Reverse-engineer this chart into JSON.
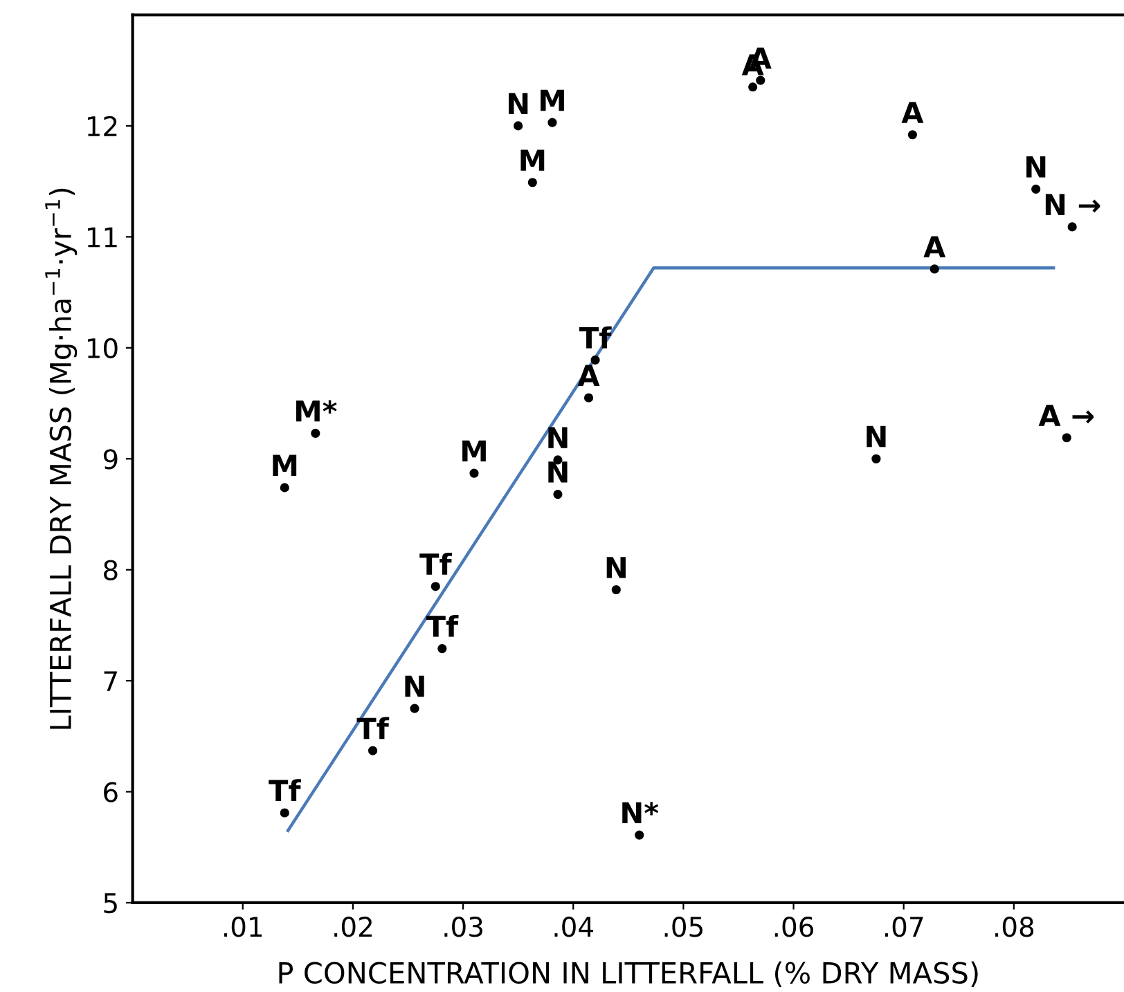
{
  "chart_data": {
    "type": "scatter",
    "xlabel": "P CONCENTRATION IN LITTERFALL (% DRY MASS)",
    "ylabel": "LITTERFALL DRY MASS (Mg·ha$^{−1}$·yr$^{−1}$)",
    "xlim": [
      0,
      0.09
    ],
    "ylim": [
      5,
      13
    ],
    "xticks": [
      {
        "value": 0.01,
        "label": ".01"
      },
      {
        "value": 0.02,
        "label": ".02"
      },
      {
        "value": 0.03,
        "label": ".03"
      },
      {
        "value": 0.04,
        "label": ".04"
      },
      {
        "value": 0.05,
        "label": ".05"
      },
      {
        "value": 0.06,
        "label": ".06"
      },
      {
        "value": 0.07,
        "label": ".07"
      },
      {
        "value": 0.08,
        "label": ".08"
      }
    ],
    "yticks": [
      5,
      6,
      7,
      8,
      9,
      10,
      11,
      12
    ],
    "grid": false,
    "legend": false,
    "series": [
      {
        "color": "#000000",
        "marker": "circle",
        "x": [
          0.0138,
          0.0166,
          0.0138,
          0.0218,
          0.0256,
          0.0281,
          0.0275,
          0.031,
          0.035,
          0.0381,
          0.0363,
          0.0386,
          0.0386,
          0.042,
          0.0414,
          0.0439,
          0.046,
          0.0563,
          0.057,
          0.0708,
          0.0728,
          0.0675,
          0.082,
          0.0853,
          0.0848
        ],
        "values": [
          8.74,
          9.23,
          5.81,
          6.37,
          6.75,
          7.29,
          7.85,
          8.87,
          12.0,
          12.03,
          11.49,
          8.99,
          8.68,
          9.89,
          9.55,
          7.82,
          5.61,
          12.35,
          12.41,
          11.92,
          10.71,
          9.0,
          11.43,
          11.09,
          9.19
        ],
        "value_labels": [
          "M",
          "M*",
          "Tf",
          "Tf",
          "N",
          "Tf",
          "Tf",
          "M",
          "N",
          "M",
          "M",
          "N",
          "N",
          "Tf",
          "A",
          "N",
          "N*",
          "A",
          "A",
          "A",
          "A",
          "N",
          "N",
          "N →",
          "A →"
        ]
      },
      {
        "type": "line",
        "color": "#4a7ab8",
        "marker": "none",
        "line_style": "solid",
        "x": [
          0.0141,
          0.0473,
          0.0836
        ],
        "values": [
          5.65,
          10.72,
          10.72
        ]
      }
    ]
  }
}
